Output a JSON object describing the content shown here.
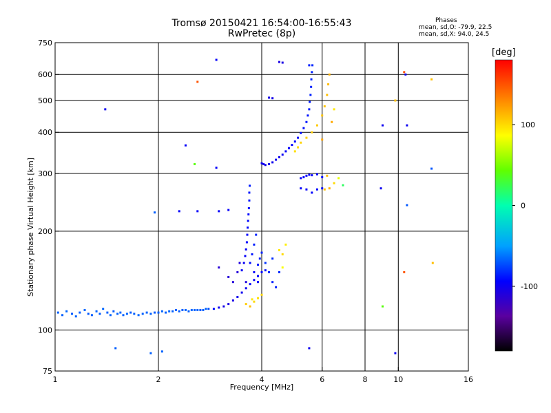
{
  "chart_data": {
    "type": "scatter",
    "title": "Tromsø 20150421 16:54:00-16:55:43",
    "subtitle": "RwPretec (8p)",
    "stats": {
      "heading": "Phases",
      "o_mode": "mean, sd,O: -79.9, 22.5",
      "x_mode": "mean, sd,X:  94.0, 24.5"
    },
    "xlabel": "Frequency [MHz]",
    "ylabel": "Stationary phase Virtual Height [km]",
    "x_scale": "log",
    "y_scale": "log",
    "xlim": [
      1,
      16
    ],
    "ylim": [
      75,
      750
    ],
    "x_ticks": [
      1,
      2,
      4,
      6,
      8,
      10,
      16
    ],
    "x_tick_labels": [
      "1",
      "2",
      "4",
      "6",
      "8",
      "10",
      "16"
    ],
    "y_ticks": [
      75,
      100,
      200,
      300,
      400,
      500,
      600,
      750
    ],
    "y_tick_labels": [
      "75",
      "100",
      "200",
      "300",
      "400",
      "500",
      "600",
      "750"
    ],
    "grid": true,
    "colorbar": {
      "label": "[deg]",
      "range": [
        -180,
        180
      ],
      "ticks": [
        100,
        0,
        -100
      ],
      "tick_labels": [
        "100",
        "0",
        "-100"
      ],
      "colormap": "rainbow"
    },
    "series": [
      {
        "values": [
          {
            "f": 1.02,
            "h": 113,
            "p": -68
          },
          {
            "f": 1.05,
            "h": 111,
            "p": -68
          },
          {
            "f": 1.08,
            "h": 114,
            "p": -66
          },
          {
            "f": 1.12,
            "h": 112,
            "p": -69
          },
          {
            "f": 1.15,
            "h": 110,
            "p": -67
          },
          {
            "f": 1.18,
            "h": 113,
            "p": -68
          },
          {
            "f": 1.22,
            "h": 115,
            "p": -66
          },
          {
            "f": 1.25,
            "h": 112,
            "p": -70
          },
          {
            "f": 1.28,
            "h": 111,
            "p": -68
          },
          {
            "f": 1.32,
            "h": 114,
            "p": -67
          },
          {
            "f": 1.35,
            "h": 112,
            "p": -69
          },
          {
            "f": 1.38,
            "h": 116,
            "p": -66
          },
          {
            "f": 1.42,
            "h": 113,
            "p": -68
          },
          {
            "f": 1.45,
            "h": 111,
            "p": -67
          },
          {
            "f": 1.48,
            "h": 114,
            "p": -69
          },
          {
            "f": 1.52,
            "h": 112,
            "p": -68
          },
          {
            "f": 1.55,
            "h": 113,
            "p": -66
          },
          {
            "f": 1.58,
            "h": 111,
            "p": -68
          },
          {
            "f": 1.62,
            "h": 112,
            "p": -67
          },
          {
            "f": 1.66,
            "h": 113,
            "p": -69
          },
          {
            "f": 1.7,
            "h": 112,
            "p": -68
          },
          {
            "f": 1.75,
            "h": 111,
            "p": -66
          },
          {
            "f": 1.8,
            "h": 112,
            "p": -68
          },
          {
            "f": 1.85,
            "h": 113,
            "p": -67
          },
          {
            "f": 1.9,
            "h": 112,
            "p": -68
          },
          {
            "f": 1.95,
            "h": 113,
            "p": -69
          },
          {
            "f": 2.0,
            "h": 113,
            "p": -68
          },
          {
            "f": 2.05,
            "h": 114,
            "p": -67
          },
          {
            "f": 2.1,
            "h": 113,
            "p": -68
          },
          {
            "f": 2.15,
            "h": 114,
            "p": -66
          },
          {
            "f": 2.2,
            "h": 114,
            "p": -68
          },
          {
            "f": 2.25,
            "h": 115,
            "p": -67
          },
          {
            "f": 2.3,
            "h": 114,
            "p": -69
          },
          {
            "f": 2.35,
            "h": 115,
            "p": -68
          },
          {
            "f": 2.4,
            "h": 115,
            "p": -67
          },
          {
            "f": 2.45,
            "h": 114,
            "p": -68
          },
          {
            "f": 2.5,
            "h": 115,
            "p": -66
          },
          {
            "f": 2.55,
            "h": 115,
            "p": -68
          },
          {
            "f": 2.6,
            "h": 115,
            "p": -67
          },
          {
            "f": 2.65,
            "h": 115,
            "p": -69
          },
          {
            "f": 2.7,
            "h": 115,
            "p": -68
          },
          {
            "f": 2.75,
            "h": 116,
            "p": -67
          },
          {
            "f": 2.8,
            "h": 116,
            "p": -72
          },
          {
            "f": 2.9,
            "h": 116,
            "p": -90
          },
          {
            "f": 3.0,
            "h": 117,
            "p": -100
          },
          {
            "f": 3.1,
            "h": 118,
            "p": -104
          },
          {
            "f": 3.2,
            "h": 120,
            "p": -106
          },
          {
            "f": 3.3,
            "h": 123,
            "p": -104
          },
          {
            "f": 3.4,
            "h": 126,
            "p": -102
          },
          {
            "f": 3.5,
            "h": 130,
            "p": -100
          },
          {
            "f": 3.6,
            "h": 134,
            "p": -98
          },
          {
            "f": 3.7,
            "h": 138,
            "p": -96
          },
          {
            "f": 3.8,
            "h": 142,
            "p": -95
          },
          {
            "f": 3.9,
            "h": 146,
            "p": -94
          },
          {
            "f": 4.0,
            "h": 150,
            "p": -92
          },
          {
            "f": 4.1,
            "h": 152,
            "p": -90
          },
          {
            "f": 3.5,
            "h": 152,
            "p": -98
          },
          {
            "f": 3.55,
            "h": 160,
            "p": -98
          },
          {
            "f": 3.58,
            "h": 168,
            "p": -96
          },
          {
            "f": 3.6,
            "h": 176,
            "p": -95
          },
          {
            "f": 3.62,
            "h": 185,
            "p": -94
          },
          {
            "f": 3.63,
            "h": 195,
            "p": -94
          },
          {
            "f": 3.64,
            "h": 205,
            "p": -92
          },
          {
            "f": 3.65,
            "h": 215,
            "p": -92
          },
          {
            "f": 3.66,
            "h": 225,
            "p": -92
          },
          {
            "f": 3.67,
            "h": 235,
            "p": -90
          },
          {
            "f": 3.68,
            "h": 248,
            "p": -88
          },
          {
            "f": 3.68,
            "h": 262,
            "p": -88
          },
          {
            "f": 3.69,
            "h": 275,
            "p": -86
          },
          {
            "f": 3.7,
            "h": 160,
            "p": -90
          },
          {
            "f": 3.75,
            "h": 170,
            "p": -88
          },
          {
            "f": 3.8,
            "h": 182,
            "p": -86
          },
          {
            "f": 3.85,
            "h": 195,
            "p": -85
          },
          {
            "f": 3.9,
            "h": 158,
            "p": -88
          },
          {
            "f": 3.95,
            "h": 165,
            "p": -86
          },
          {
            "f": 4.0,
            "h": 172,
            "p": -85
          },
          {
            "f": 4.1,
            "h": 160,
            "p": -80
          },
          {
            "f": 4.2,
            "h": 150,
            "p": -84
          },
          {
            "f": 4.3,
            "h": 140,
            "p": -86
          },
          {
            "f": 4.4,
            "h": 135,
            "p": -86
          },
          {
            "f": 4.5,
            "h": 150,
            "p": -84
          },
          {
            "f": 4.3,
            "h": 165,
            "p": -82
          },
          {
            "f": 4.5,
            "h": 175,
            "p": 95
          },
          {
            "f": 4.6,
            "h": 170,
            "p": 100
          },
          {
            "f": 4.7,
            "h": 182,
            "p": 92
          },
          {
            "f": 4.6,
            "h": 155,
            "p": 85
          },
          {
            "f": 3.3,
            "h": 140,
            "p": -110
          },
          {
            "f": 3.4,
            "h": 150,
            "p": -110
          },
          {
            "f": 3.45,
            "h": 160,
            "p": -108
          },
          {
            "f": 3.2,
            "h": 145,
            "p": -112
          },
          {
            "f": 3.0,
            "h": 155,
            "p": -112
          },
          {
            "f": 3.6,
            "h": 140,
            "p": -108
          },
          {
            "f": 3.8,
            "h": 150,
            "p": -96
          },
          {
            "f": 3.9,
            "h": 140,
            "p": -95
          },
          {
            "f": 3.6,
            "h": 120,
            "p": 105
          },
          {
            "f": 3.7,
            "h": 118,
            "p": 110
          },
          {
            "f": 3.8,
            "h": 122,
            "p": 100
          },
          {
            "f": 3.9,
            "h": 125,
            "p": 98
          },
          {
            "f": 4.0,
            "h": 128,
            "p": 102
          },
          {
            "f": 3.75,
            "h": 124,
            "p": 95
          },
          {
            "f": 4.0,
            "h": 322,
            "p": -100
          },
          {
            "f": 4.05,
            "h": 320,
            "p": -102
          },
          {
            "f": 4.1,
            "h": 318,
            "p": -104
          },
          {
            "f": 4.2,
            "h": 320,
            "p": -104
          },
          {
            "f": 4.3,
            "h": 324,
            "p": -102
          },
          {
            "f": 4.4,
            "h": 330,
            "p": -100
          },
          {
            "f": 4.5,
            "h": 336,
            "p": -100
          },
          {
            "f": 4.6,
            "h": 342,
            "p": -98
          },
          {
            "f": 4.7,
            "h": 350,
            "p": -96
          },
          {
            "f": 4.8,
            "h": 358,
            "p": -95
          },
          {
            "f": 4.9,
            "h": 366,
            "p": -94
          },
          {
            "f": 5.0,
            "h": 375,
            "p": -92
          },
          {
            "f": 5.1,
            "h": 385,
            "p": -92
          },
          {
            "f": 5.2,
            "h": 398,
            "p": -90
          },
          {
            "f": 5.3,
            "h": 412,
            "p": -90
          },
          {
            "f": 5.4,
            "h": 430,
            "p": -88
          },
          {
            "f": 5.45,
            "h": 450,
            "p": -88
          },
          {
            "f": 5.5,
            "h": 470,
            "p": -86
          },
          {
            "f": 5.52,
            "h": 495,
            "p": -86
          },
          {
            "f": 5.55,
            "h": 520,
            "p": -85
          },
          {
            "f": 5.57,
            "h": 550,
            "p": -85
          },
          {
            "f": 5.58,
            "h": 580,
            "p": -84
          },
          {
            "f": 5.6,
            "h": 610,
            "p": -84
          },
          {
            "f": 5.62,
            "h": 640,
            "p": -83
          },
          {
            "f": 5.5,
            "h": 640,
            "p": -85
          },
          {
            "f": 4.2,
            "h": 510,
            "p": -104
          },
          {
            "f": 4.3,
            "h": 508,
            "p": -104
          },
          {
            "f": 4.5,
            "h": 655,
            "p": -106
          },
          {
            "f": 4.6,
            "h": 652,
            "p": -106
          },
          {
            "f": 5.0,
            "h": 350,
            "p": 98
          },
          {
            "f": 5.1,
            "h": 360,
            "p": 100
          },
          {
            "f": 5.2,
            "h": 372,
            "p": 102
          },
          {
            "f": 5.4,
            "h": 385,
            "p": 104
          },
          {
            "f": 5.6,
            "h": 400,
            "p": 105
          },
          {
            "f": 5.8,
            "h": 420,
            "p": 106
          },
          {
            "f": 6.0,
            "h": 450,
            "p": 108
          },
          {
            "f": 6.1,
            "h": 480,
            "p": 108
          },
          {
            "f": 6.2,
            "h": 520,
            "p": 110
          },
          {
            "f": 6.25,
            "h": 560,
            "p": 112
          },
          {
            "f": 6.3,
            "h": 600,
            "p": 115
          },
          {
            "f": 6.0,
            "h": 380,
            "p": 120
          },
          {
            "f": 6.4,
            "h": 430,
            "p": 118
          },
          {
            "f": 6.5,
            "h": 470,
            "p": 95
          },
          {
            "f": 5.2,
            "h": 290,
            "p": -95
          },
          {
            "f": 5.3,
            "h": 292,
            "p": -96
          },
          {
            "f": 5.4,
            "h": 295,
            "p": -96
          },
          {
            "f": 5.5,
            "h": 297,
            "p": -95
          },
          {
            "f": 5.6,
            "h": 296,
            "p": -94
          },
          {
            "f": 5.8,
            "h": 298,
            "p": -94
          },
          {
            "f": 6.0,
            "h": 292,
            "p": -92
          },
          {
            "f": 5.2,
            "h": 270,
            "p": -96
          },
          {
            "f": 5.4,
            "h": 268,
            "p": -96
          },
          {
            "f": 5.6,
            "h": 262,
            "p": -94
          },
          {
            "f": 5.8,
            "h": 268,
            "p": -92
          },
          {
            "f": 6.0,
            "h": 270,
            "p": -92
          },
          {
            "f": 6.1,
            "h": 268,
            "p": 110
          },
          {
            "f": 6.3,
            "h": 270,
            "p": 115
          },
          {
            "f": 6.5,
            "h": 280,
            "p": 100
          },
          {
            "f": 6.7,
            "h": 290,
            "p": 80
          },
          {
            "f": 6.9,
            "h": 276,
            "p": 20
          },
          {
            "f": 6.2,
            "h": 295,
            "p": 110
          },
          {
            "f": 1.4,
            "h": 470,
            "p": -100
          },
          {
            "f": 2.6,
            "h": 570,
            "p": 150
          },
          {
            "f": 2.95,
            "h": 665,
            "p": -96
          },
          {
            "f": 2.4,
            "h": 365,
            "p": -96
          },
          {
            "f": 2.55,
            "h": 320,
            "p": 40
          },
          {
            "f": 2.95,
            "h": 312,
            "p": -96
          },
          {
            "f": 1.95,
            "h": 228,
            "p": -68
          },
          {
            "f": 2.3,
            "h": 230,
            "p": -96
          },
          {
            "f": 2.6,
            "h": 230,
            "p": -96
          },
          {
            "f": 3.0,
            "h": 230,
            "p": -96
          },
          {
            "f": 3.2,
            "h": 232,
            "p": -96
          },
          {
            "f": 8.9,
            "h": 270,
            "p": -100
          },
          {
            "f": 9.0,
            "h": 420,
            "p": -100
          },
          {
            "f": 9.8,
            "h": 500,
            "p": 110
          },
          {
            "f": 10.4,
            "h": 610,
            "p": 150
          },
          {
            "f": 10.5,
            "h": 600,
            "p": -100
          },
          {
            "f": 10.6,
            "h": 420,
            "p": -100
          },
          {
            "f": 10.6,
            "h": 240,
            "p": -70
          },
          {
            "f": 10.4,
            "h": 150,
            "p": 150
          },
          {
            "f": 12.5,
            "h": 310,
            "p": -70
          },
          {
            "f": 12.5,
            "h": 580,
            "p": 110
          },
          {
            "f": 12.6,
            "h": 160,
            "p": 110
          },
          {
            "f": 9.0,
            "h": 118,
            "p": 40
          },
          {
            "f": 5.5,
            "h": 88,
            "p": -100
          },
          {
            "f": 9.8,
            "h": 85,
            "p": -100
          },
          {
            "f": 2.05,
            "h": 86,
            "p": -68
          },
          {
            "f": 1.5,
            "h": 88,
            "p": -68
          },
          {
            "f": 1.9,
            "h": 85,
            "p": -68
          }
        ]
      }
    ]
  }
}
